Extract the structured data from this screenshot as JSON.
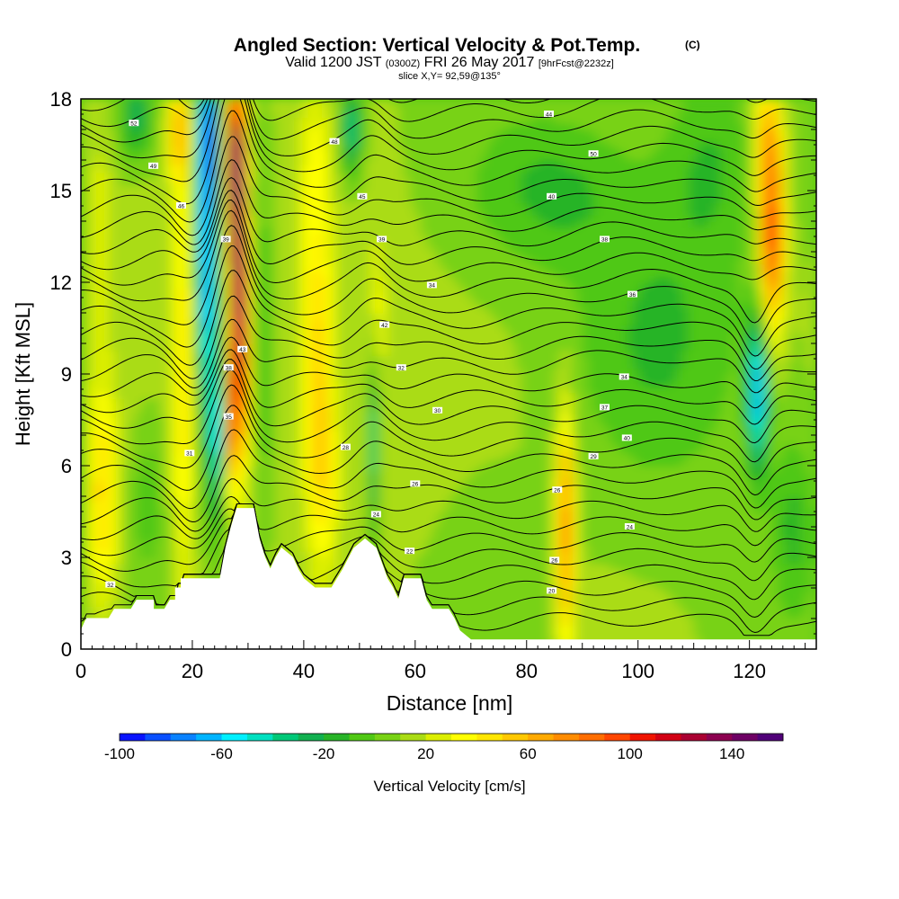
{
  "chart_data": {
    "type": "heatmap",
    "title": "Angled Section: Vertical Velocity & Pot.Temp.",
    "title_unit": "(C)",
    "subtitle_main_a": "Valid 1200 JST",
    "subtitle_utc": "(0300Z)",
    "subtitle_main_b": "FRI 26 May 2017",
    "subtitle_fcst": "[9hrFcst@2232z]",
    "slice_label": "slice X,Y= 92,59@135°",
    "xlabel": "Distance [nm]",
    "ylabel": "Height [Kft MSL]",
    "xlim": [
      0,
      132
    ],
    "ylim": [
      0,
      18
    ],
    "xticks": [
      0,
      20,
      40,
      60,
      80,
      100,
      120
    ],
    "yticks": [
      0,
      3,
      6,
      9,
      12,
      15,
      18
    ],
    "colorbar": {
      "label": "Vertical Velocity [cm/s]",
      "min": -100,
      "max": 160,
      "step": 10,
      "tick_labels": [
        "-100",
        "-60",
        "-20",
        "20",
        "60",
        "100",
        "140"
      ],
      "tick_values": [
        -100,
        -60,
        -20,
        20,
        60,
        100,
        140
      ],
      "colors": [
        "#0a14ff",
        "#0a50ff",
        "#0a82ff",
        "#00b4ff",
        "#00f0ff",
        "#00e0c0",
        "#00c878",
        "#12b050",
        "#28b428",
        "#50c814",
        "#78d214",
        "#aadc14",
        "#dcee00",
        "#ffff00",
        "#ffe600",
        "#ffc800",
        "#ffaa00",
        "#ff8c00",
        "#ff6e00",
        "#ff4600",
        "#f01400",
        "#d20014",
        "#aa0032",
        "#8c0050",
        "#6e0064",
        "#500078"
      ]
    },
    "terrain_kft": [
      [
        0,
        0.6
      ],
      [
        1,
        1.0
      ],
      [
        5,
        1.0
      ],
      [
        6,
        1.3
      ],
      [
        9,
        1.3
      ],
      [
        10,
        1.6
      ],
      [
        13,
        1.6
      ],
      [
        13,
        1.3
      ],
      [
        15,
        1.3
      ],
      [
        16,
        1.6
      ],
      [
        17,
        1.6
      ],
      [
        17,
        2.0
      ],
      [
        18,
        2.0
      ],
      [
        18,
        2.3
      ],
      [
        25,
        2.3
      ],
      [
        26,
        3.3
      ],
      [
        27,
        4.0
      ],
      [
        28,
        4.6
      ],
      [
        31,
        4.6
      ],
      [
        32,
        3.6
      ],
      [
        33,
        3.0
      ],
      [
        34,
        2.6
      ],
      [
        35,
        3.0
      ],
      [
        36,
        3.3
      ],
      [
        38,
        3.0
      ],
      [
        39,
        2.6
      ],
      [
        40,
        2.3
      ],
      [
        42,
        2.0
      ],
      [
        45,
        2.0
      ],
      [
        46,
        2.3
      ],
      [
        47,
        2.6
      ],
      [
        49,
        3.3
      ],
      [
        51,
        3.6
      ],
      [
        53,
        3.3
      ],
      [
        55,
        2.3
      ],
      [
        56,
        2.0
      ],
      [
        57,
        1.6
      ],
      [
        58,
        2.3
      ],
      [
        61,
        2.3
      ],
      [
        62,
        1.6
      ],
      [
        63,
        1.3
      ],
      [
        66,
        1.3
      ],
      [
        67,
        1.0
      ],
      [
        68,
        0.6
      ],
      [
        70,
        0.3
      ],
      [
        132,
        0.3
      ]
    ],
    "isentrope_labels": [
      {
        "x": 5.3,
        "y": 2.1,
        "text": "32"
      },
      {
        "x": 9.5,
        "y": 17.2,
        "text": "52"
      },
      {
        "x": 13.0,
        "y": 15.8,
        "text": "49"
      },
      {
        "x": 18.0,
        "y": 14.5,
        "text": "46"
      },
      {
        "x": 26.0,
        "y": 13.4,
        "text": "39"
      },
      {
        "x": 29.0,
        "y": 9.8,
        "text": "43"
      },
      {
        "x": 26.5,
        "y": 9.2,
        "text": "38"
      },
      {
        "x": 26.5,
        "y": 7.6,
        "text": "35"
      },
      {
        "x": 19.5,
        "y": 6.4,
        "text": "31"
      },
      {
        "x": 45.5,
        "y": 16.6,
        "text": "48"
      },
      {
        "x": 50.5,
        "y": 14.8,
        "text": "45"
      },
      {
        "x": 54.0,
        "y": 13.4,
        "text": "39"
      },
      {
        "x": 63.0,
        "y": 11.9,
        "text": "34"
      },
      {
        "x": 54.5,
        "y": 10.6,
        "text": "42"
      },
      {
        "x": 57.5,
        "y": 9.2,
        "text": "32"
      },
      {
        "x": 64.0,
        "y": 7.8,
        "text": "30"
      },
      {
        "x": 47.5,
        "y": 6.6,
        "text": "28"
      },
      {
        "x": 60.0,
        "y": 5.4,
        "text": "26"
      },
      {
        "x": 53.0,
        "y": 4.4,
        "text": "24"
      },
      {
        "x": 59.0,
        "y": 3.2,
        "text": "22"
      },
      {
        "x": 84.0,
        "y": 17.5,
        "text": "44"
      },
      {
        "x": 92.0,
        "y": 16.2,
        "text": "50"
      },
      {
        "x": 84.5,
        "y": 14.8,
        "text": "40"
      },
      {
        "x": 94.0,
        "y": 13.4,
        "text": "38"
      },
      {
        "x": 99.0,
        "y": 11.6,
        "text": "36"
      },
      {
        "x": 97.5,
        "y": 8.9,
        "text": "34"
      },
      {
        "x": 94.0,
        "y": 7.9,
        "text": "37"
      },
      {
        "x": 98.0,
        "y": 6.9,
        "text": "40"
      },
      {
        "x": 92.0,
        "y": 6.3,
        "text": "29"
      },
      {
        "x": 85.5,
        "y": 5.2,
        "text": "26"
      },
      {
        "x": 98.5,
        "y": 4.0,
        "text": "24"
      },
      {
        "x": 85.0,
        "y": 2.9,
        "text": "26"
      },
      {
        "x": 84.5,
        "y": 1.9,
        "text": "20"
      }
    ]
  }
}
